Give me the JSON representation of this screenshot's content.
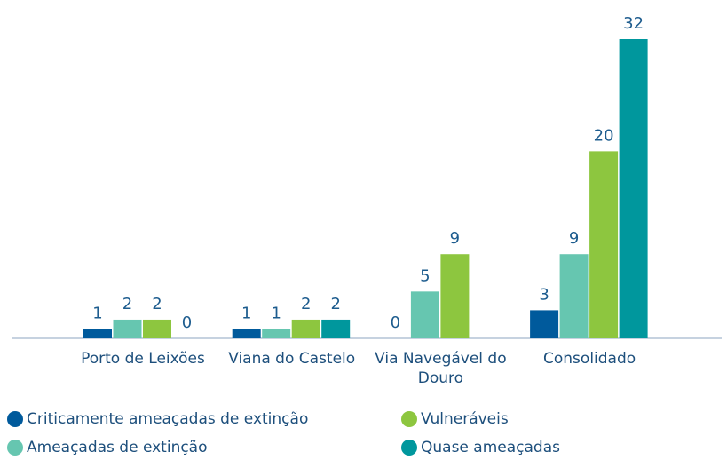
{
  "chart_data": {
    "type": "bar",
    "categories": [
      "Porto de Leixões",
      "Viana do Castelo",
      "Via Navegável do Douro",
      "Consolidado"
    ],
    "series": [
      {
        "name": "Criticamente ameaçadas de extinção",
        "color": "#005a9c",
        "values": [
          1,
          1,
          0,
          3
        ]
      },
      {
        "name": "Ameaçadas de extinção",
        "color": "#66c6b0",
        "values": [
          2,
          1,
          5,
          9
        ]
      },
      {
        "name": "Vulneráveis",
        "color": "#8dc63f",
        "values": [
          2,
          2,
          9,
          20
        ]
      },
      {
        "name": "Quase ameaçadas",
        "color": "#00979d",
        "values": [
          0,
          2,
          null,
          32
        ]
      }
    ],
    "ylim": [
      0,
      32
    ]
  }
}
